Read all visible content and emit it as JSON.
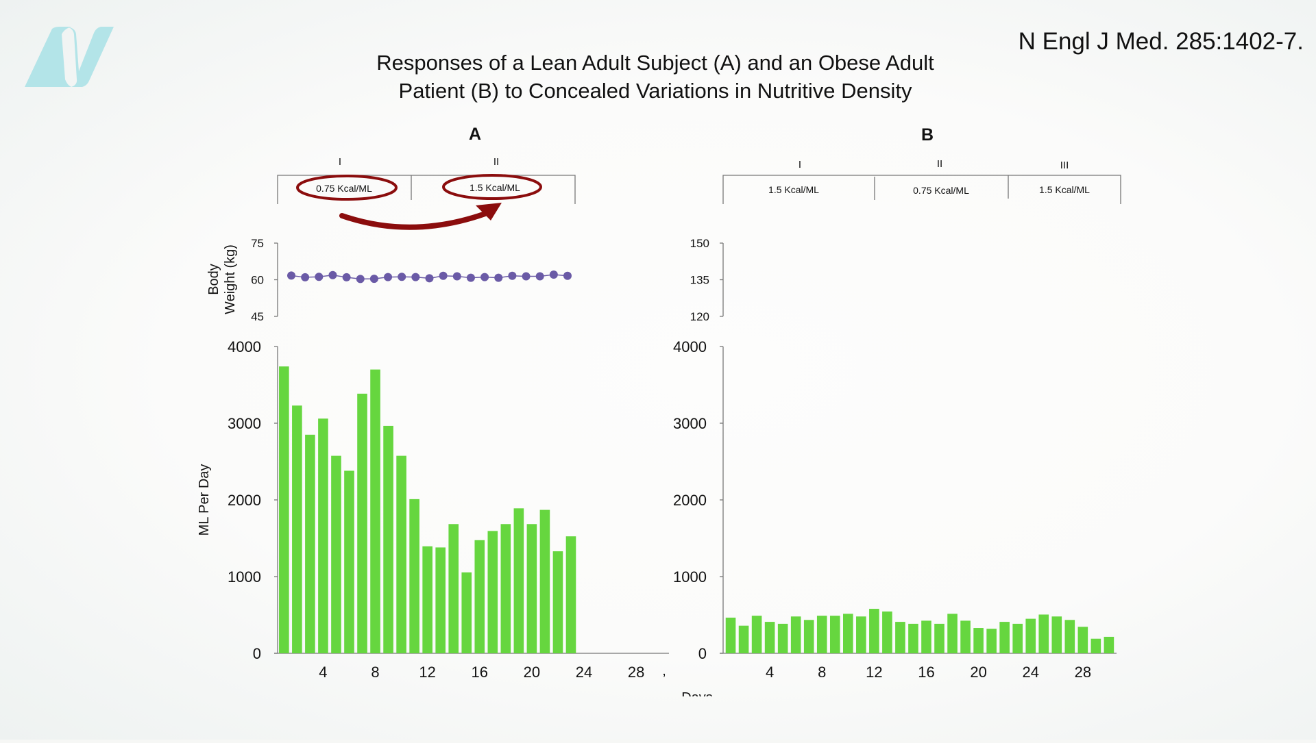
{
  "header": {
    "title_line1": "Responses of a Lean Adult Subject (A) and an Obese Adult",
    "title_line2": "Patient (B) to Concealed Variations in Nutritive Density",
    "citation": "N Engl J Med. 285:1402-7.",
    "logo_text": "N"
  },
  "colors": {
    "bar": "#66d63f",
    "weight_dot": "#6a5aa6",
    "annotation": "#8b0d0d",
    "logo": "#b3e4e8"
  },
  "chart_data": [
    {
      "type": "bar",
      "panel": "A",
      "periods": [
        {
          "roman": "I",
          "density": "0.75 Kcal/ML",
          "highlighted": true
        },
        {
          "roman": "II",
          "density": "1.5 Kcal/ML",
          "highlighted": true
        }
      ],
      "annotation": "arrow from 0.75 Kcal/ML to 1.5 Kcal/ML",
      "weight": {
        "ylabel_line1": "Body",
        "ylabel_line2": "Weight (kg)",
        "ylim": [
          45,
          75
        ],
        "yticks": [
          "75",
          "60",
          "45"
        ],
        "x": [
          1,
          2,
          3,
          4,
          5,
          6,
          7,
          8,
          9,
          10,
          11,
          12,
          13,
          14,
          15,
          16,
          17,
          18,
          19,
          20,
          21
        ],
        "values": [
          61.7,
          61.0,
          61.2,
          61.9,
          61.0,
          60.3,
          60.4,
          61.1,
          61.2,
          61.1,
          60.6,
          61.6,
          61.4,
          60.8,
          61.1,
          60.8,
          61.6,
          61.4,
          61.4,
          62.1,
          61.6
        ]
      },
      "intake": {
        "ylabel": "ML Per Day",
        "ylim": [
          0,
          4000
        ],
        "yticks": [
          "4000",
          "3000",
          "2000",
          "1000",
          "0"
        ],
        "xticks": [
          "4",
          "8",
          "12",
          "16",
          "20",
          "24",
          "28"
        ],
        "x": [
          1,
          2,
          3,
          4,
          5,
          6,
          7,
          8,
          9,
          10,
          11,
          12,
          13,
          14,
          15,
          16,
          17,
          18,
          19,
          20,
          21,
          22,
          23
        ],
        "values": [
          3740,
          3230,
          2850,
          3060,
          2575,
          2380,
          3385,
          3700,
          2965,
          2575,
          2010,
          1395,
          1380,
          1685,
          1055,
          1475,
          1595,
          1685,
          1890,
          1685,
          1870,
          1330,
          1525
        ]
      }
    },
    {
      "type": "bar",
      "panel": "B",
      "periods": [
        {
          "roman": "I",
          "density": "1.5 Kcal/ML"
        },
        {
          "roman": "II",
          "density": "0.75 Kcal/ML"
        },
        {
          "roman": "III",
          "density": "1.5 Kcal/ML"
        }
      ],
      "weight": {
        "ylim": [
          120,
          150
        ],
        "yticks": [
          "150",
          "135",
          "120"
        ],
        "values": []
      },
      "intake": {
        "ylim": [
          0,
          4000
        ],
        "yticks": [
          "4000",
          "3000",
          "2000",
          "1000",
          "0"
        ],
        "xticks": [
          "4",
          "8",
          "12",
          "16",
          "20",
          "24",
          "28"
        ],
        "xlabel": "Days",
        "x": [
          1,
          2,
          3,
          4,
          5,
          6,
          7,
          8,
          9,
          10,
          11,
          12,
          13,
          14,
          15,
          16,
          17,
          18,
          19,
          20,
          21,
          22,
          23,
          24,
          25,
          26,
          27,
          28,
          29,
          30
        ],
        "values": [
          465,
          360,
          490,
          410,
          385,
          480,
          435,
          490,
          490,
          515,
          480,
          580,
          545,
          410,
          385,
          425,
          385,
          515,
          425,
          330,
          320,
          410,
          385,
          450,
          505,
          480,
          435,
          345,
          190,
          215
        ]
      }
    }
  ]
}
